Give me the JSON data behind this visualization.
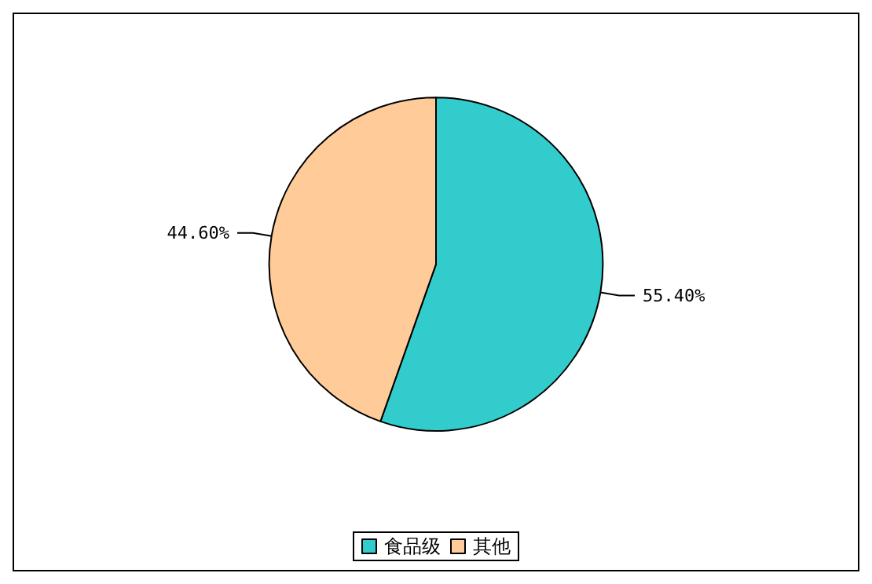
{
  "chart_data": {
    "type": "pie",
    "categories": [
      "食品级",
      "其他"
    ],
    "values": [
      55.4,
      44.6
    ],
    "colors": [
      "#33cccc",
      "#ffcc99"
    ],
    "value_labels": [
      "55.40%",
      "44.60%"
    ],
    "legend": "bottom"
  }
}
